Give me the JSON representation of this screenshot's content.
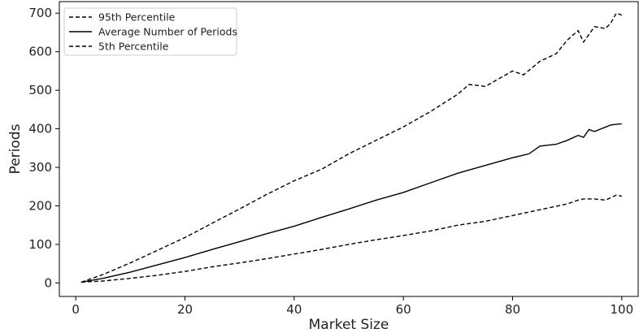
{
  "chart_data": {
    "type": "line",
    "xlabel": "Market Size",
    "ylabel": "Periods",
    "xlim": [
      -3,
      103
    ],
    "ylim": [
      -35,
      730
    ],
    "xticks": [
      0,
      20,
      40,
      60,
      80,
      100
    ],
    "yticks": [
      0,
      100,
      200,
      300,
      400,
      500,
      600,
      700
    ],
    "grid": false,
    "legend_position": "top-left",
    "series": [
      {
        "name": "95th Percentile",
        "style": "dashed",
        "color": "#000000",
        "x": [
          1,
          5,
          10,
          15,
          20,
          25,
          30,
          35,
          40,
          45,
          50,
          55,
          60,
          65,
          70,
          72,
          75,
          80,
          82,
          85,
          88,
          90,
          92,
          93,
          95,
          97,
          98,
          99,
          100
        ],
        "y": [
          2,
          22,
          52,
          85,
          118,
          155,
          192,
          230,
          265,
          295,
          335,
          370,
          405,
          445,
          490,
          515,
          510,
          550,
          540,
          575,
          595,
          630,
          655,
          625,
          665,
          660,
          675,
          700,
          695
        ]
      },
      {
        "name": "Average Number of Periods",
        "style": "solid",
        "color": "#000000",
        "x": [
          1,
          5,
          10,
          15,
          20,
          25,
          30,
          35,
          40,
          45,
          50,
          55,
          60,
          65,
          70,
          75,
          80,
          83,
          85,
          88,
          90,
          92,
          93,
          94,
          95,
          98,
          100
        ],
        "y": [
          2,
          12,
          28,
          47,
          66,
          87,
          107,
          128,
          147,
          170,
          192,
          215,
          235,
          260,
          285,
          305,
          325,
          335,
          355,
          360,
          370,
          383,
          378,
          398,
          393,
          410,
          413
        ]
      },
      {
        "name": "5th Percentile",
        "style": "dashed",
        "color": "#000000",
        "x": [
          1,
          5,
          10,
          15,
          20,
          25,
          30,
          35,
          40,
          45,
          50,
          55,
          60,
          65,
          70,
          75,
          80,
          85,
          90,
          92,
          93,
          95,
          97,
          99,
          100
        ],
        "y": [
          2,
          5,
          12,
          20,
          30,
          42,
          52,
          63,
          75,
          87,
          100,
          112,
          123,
          135,
          150,
          160,
          175,
          190,
          205,
          215,
          218,
          218,
          215,
          228,
          225
        ]
      }
    ]
  }
}
